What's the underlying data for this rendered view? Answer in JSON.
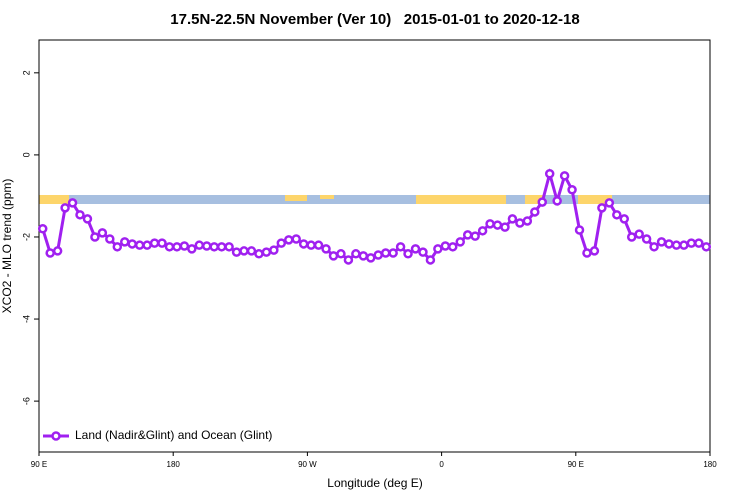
{
  "chart_data": {
    "type": "line",
    "title": "17.5N-22.5N November (Ver 10)   2015-01-01 to 2020-12-18",
    "x_label": "Longitude (deg E)",
    "y_label": "XCO2 - MLO trend (ppm)",
    "x": [
      92.5,
      97.5,
      102.5,
      107.5,
      112.5,
      117.5,
      122.5,
      127.5,
      132.5,
      137.5,
      142.5,
      147.5,
      152.5,
      157.5,
      162.5,
      167.5,
      172.5,
      177.5,
      182.5,
      187.5,
      192.5,
      197.5,
      202.5,
      207.5,
      212.5,
      217.5,
      222.5,
      227.5,
      232.5,
      237.5,
      242.5,
      247.5,
      252.5,
      257.5,
      262.5,
      267.5,
      272.5,
      277.5,
      282.5,
      287.5,
      292.5,
      297.5,
      302.5,
      307.5,
      312.5,
      317.5,
      322.5,
      327.5,
      332.5,
      337.5,
      342.5,
      347.5,
      352.5,
      357.5,
      362.5,
      367.5,
      372.5,
      377.5,
      382.5,
      387.5,
      392.5,
      397.5,
      402.5,
      407.5,
      412.5,
      417.5,
      422.5,
      427.5,
      432.5,
      437.5,
      442.5,
      447.5,
      452.5,
      457.5,
      462.5,
      467.5,
      472.5,
      477.5,
      482.5,
      487.5,
      492.5,
      497.5,
      502.5,
      507.5,
      512.5,
      517.5,
      522.5,
      527.5,
      532.5,
      537.5
    ],
    "series": [
      {
        "name": "Land (Nadir&Glint) and Ocean (Glint)",
        "color": "#a020f0",
        "values": [
          -1.8,
          -2.39,
          -2.34,
          -1.29,
          -1.17,
          -1.46,
          -1.56,
          -2.0,
          -1.9,
          -2.05,
          -2.24,
          -2.12,
          -2.17,
          -2.2,
          -2.2,
          -2.15,
          -2.15,
          -2.24,
          -2.24,
          -2.22,
          -2.29,
          -2.2,
          -2.22,
          -2.24,
          -2.24,
          -2.24,
          -2.37,
          -2.34,
          -2.34,
          -2.41,
          -2.37,
          -2.32,
          -2.15,
          -2.07,
          -2.05,
          -2.17,
          -2.2,
          -2.2,
          -2.29,
          -2.46,
          -2.41,
          -2.56,
          -2.41,
          -2.46,
          -2.51,
          -2.44,
          -2.39,
          -2.39,
          -2.24,
          -2.41,
          -2.29,
          -2.37,
          -2.56,
          -2.29,
          -2.22,
          -2.24,
          -2.12,
          -1.95,
          -1.98,
          -1.85,
          -1.68,
          -1.71,
          -1.76,
          -1.56,
          -1.66,
          -1.61,
          -1.39,
          -1.15,
          -0.46,
          -1.12,
          -0.51,
          -0.85,
          -1.83,
          -2.39,
          -2.34,
          -1.29,
          -1.17,
          -1.46,
          -1.56,
          -2.0,
          -1.93,
          -2.05,
          -2.24,
          -2.12,
          -2.17,
          -2.2,
          -2.2,
          -2.15,
          -2.15,
          -2.24
        ]
      }
    ],
    "xlim": [
      90,
      540
    ],
    "xticks": [
      {
        "value": 90,
        "label": "90 E"
      },
      {
        "value": 180,
        "label": "180"
      },
      {
        "value": 270,
        "label": "90 W"
      },
      {
        "value": 360,
        "label": "0"
      },
      {
        "value": 450,
        "label": "90 E"
      },
      {
        "value": 540,
        "label": "180"
      }
    ],
    "ylim": [
      -7.24,
      2.8
    ],
    "yticks": [
      2,
      0,
      -2,
      -4,
      -6
    ],
    "legend": "bottomleft"
  }
}
